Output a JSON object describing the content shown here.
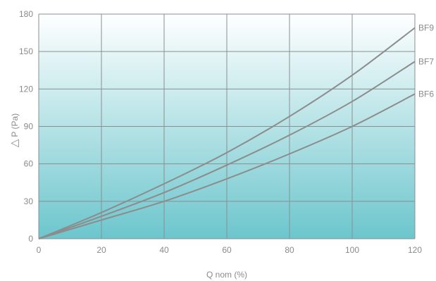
{
  "chart_data": {
    "type": "line",
    "xlabel": "Q nom (%)",
    "ylabel_delta": "△",
    "ylabel": "P (Pa)",
    "xlim": [
      0,
      120
    ],
    "ylim": [
      0,
      180
    ],
    "x_ticks": [
      "0",
      "20",
      "40",
      "60",
      "80",
      "100",
      "120"
    ],
    "y_ticks": [
      "0",
      "30",
      "60",
      "90",
      "120",
      "150",
      "180"
    ],
    "grid": true,
    "background_gradient": [
      "#ffffff",
      "#6cc6cd"
    ],
    "line_color": "#8c8c8c",
    "series": [
      {
        "name": "BF9",
        "x": [
          0,
          20,
          40,
          60,
          80,
          100,
          120
        ],
        "y": [
          0,
          21,
          44,
          69,
          98,
          131,
          169
        ]
      },
      {
        "name": "BF7",
        "x": [
          0,
          20,
          40,
          60,
          80,
          100,
          120
        ],
        "y": [
          0,
          18,
          37,
          59,
          83,
          110,
          142
        ]
      },
      {
        "name": "BF6",
        "x": [
          0,
          20,
          40,
          60,
          80,
          100,
          120
        ],
        "y": [
          0,
          15,
          30,
          48,
          68,
          90,
          116
        ]
      }
    ]
  }
}
